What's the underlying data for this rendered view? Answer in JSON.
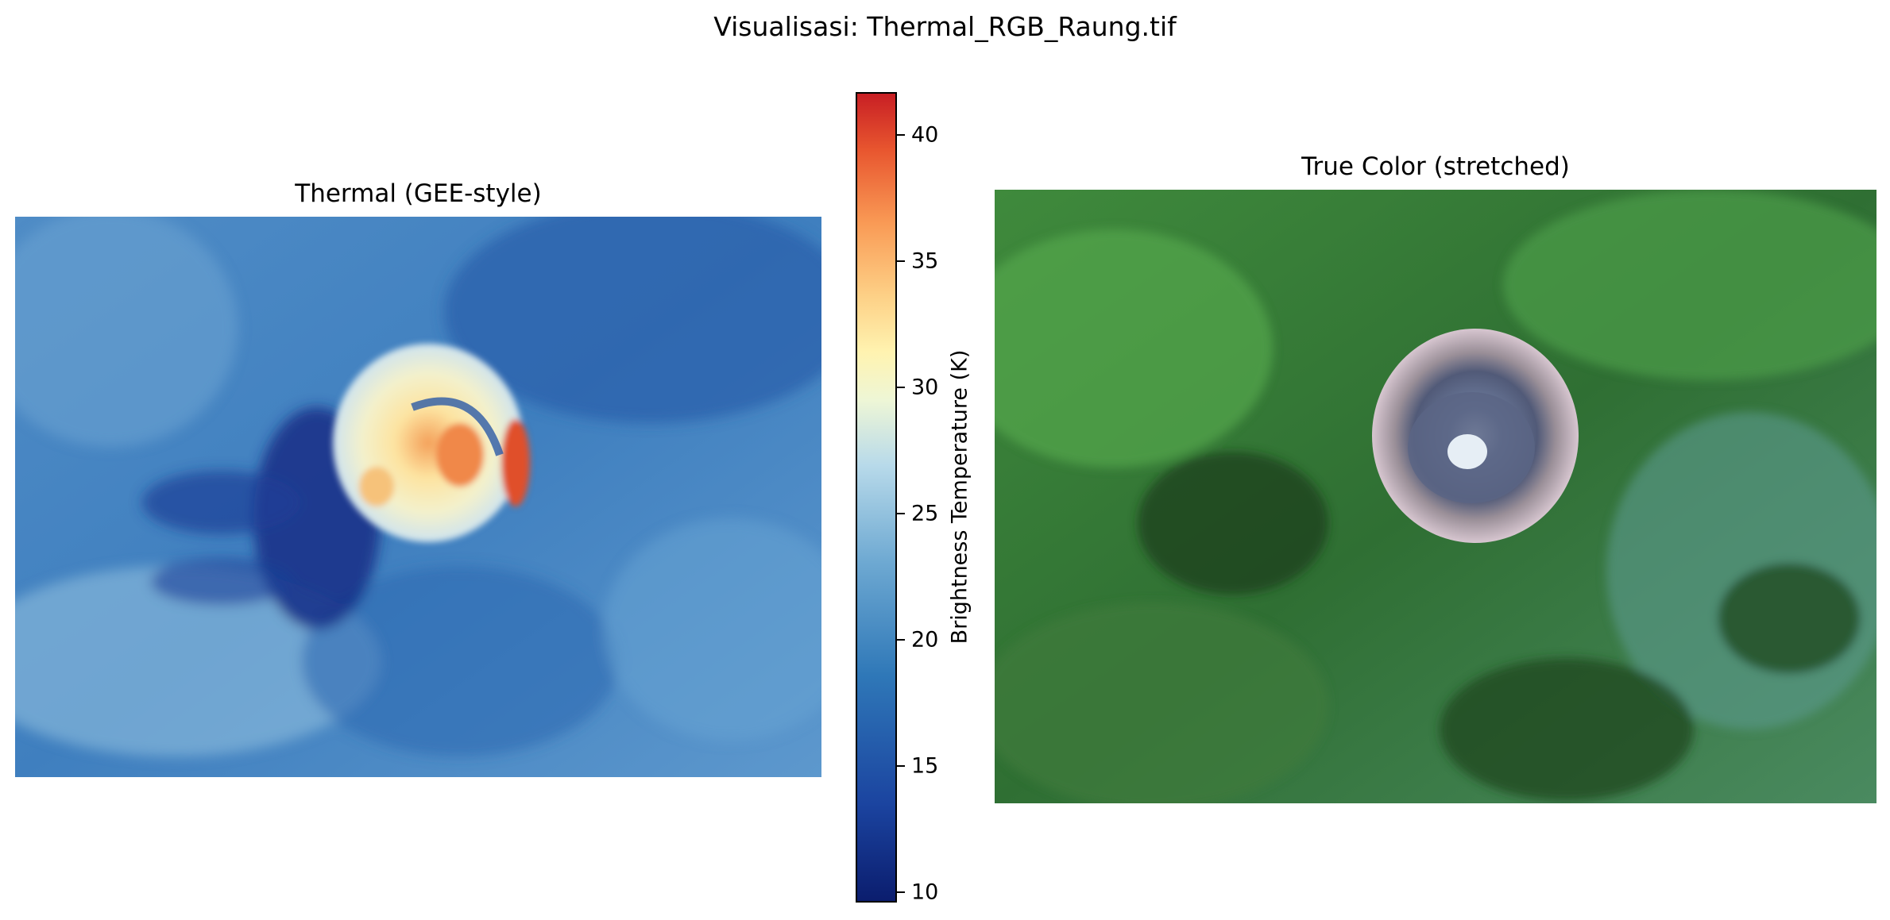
{
  "figure_title": "Visualisasi: Thermal_RGB_Raung.tif",
  "chart_data": [
    {
      "type": "heatmap",
      "title": "Thermal (GEE-style)",
      "colormap": "RdYlBu_r",
      "colorbar": {
        "label": "Brightness Temperature (K)",
        "range": [
          9.6,
          41.7
        ],
        "ticks": [
          10,
          15,
          20,
          25,
          30,
          35,
          40
        ],
        "tick_labels": [
          "10",
          "15",
          "20",
          "25",
          "30",
          "35",
          "40"
        ],
        "colors": [
          "#0b1d6e",
          "#1b44a0",
          "#2f78b8",
          "#6ea9d2",
          "#b8daea",
          "#fff3b0",
          "#f99a55",
          "#c81f24"
        ]
      }
    },
    {
      "type": "image",
      "title": "True Color (stretched)"
    }
  ]
}
